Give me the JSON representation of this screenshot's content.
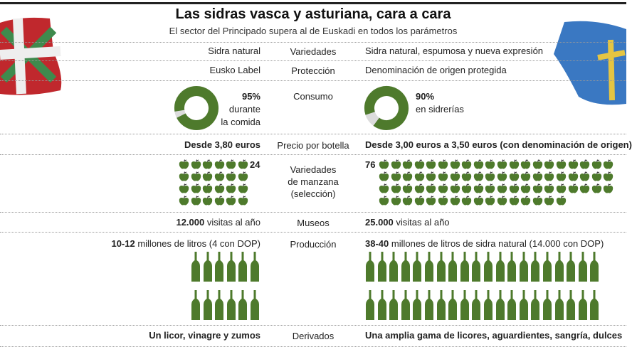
{
  "title": "Las sidras vasca y asturiana, cara a cara",
  "subtitle": "El sector del Principado supera al de Euskadi en todos los parámetros",
  "colors": {
    "green": "#4e7a2c",
    "donut_rest": "#dcdcdc",
    "basque_red": "#c0282d",
    "asturias_blue": "#3a78c2",
    "cross_yellow": "#e5c542"
  },
  "rows": {
    "variedades": {
      "label": "Variedades",
      "left": "Sidra natural",
      "right": "Sidra natural, espumosa y nueva expresión"
    },
    "proteccion": {
      "label": "Protección",
      "left": "Eusko Label",
      "right": "Denominación de origen protegida"
    },
    "consumo": {
      "label": "Consumo",
      "left_pct": "95%",
      "left_text1": "durante",
      "left_text2": "la comida",
      "left_value": 95,
      "right_pct": "90%",
      "right_text": "en sidrerías",
      "right_value": 90
    },
    "precio": {
      "label": "Precio por botella",
      "left": "Desde 3,80 euros",
      "right": "Desde 3,00 euros a 3,50 euros (con denominación de origen)"
    },
    "manzana": {
      "label1": "Variedades",
      "label2": "de manzana",
      "label3": "(selección)",
      "left_count": 24,
      "left_label": "24",
      "right_count": 76,
      "right_label": "76"
    },
    "museos": {
      "label": "Museos",
      "left_bold": "12.000",
      "left_rest": " visitas al año",
      "right_bold": "25.000",
      "right_rest": " visitas al año"
    },
    "produccion": {
      "label": "Producción",
      "left_bold": "10-12",
      "left_rest": " millones de litros (4 con DOP)",
      "right_bold": "38-40",
      "right_rest": " millones de litros de sidra natural (14.000 con DOP)",
      "left_bottles": 12,
      "right_bottles": 40
    },
    "derivados": {
      "label": "Derivados",
      "left": "Un licor, vinagre y zumos",
      "right": "Una amplia gama de licores, aguardientes, sangría, dulces"
    }
  }
}
